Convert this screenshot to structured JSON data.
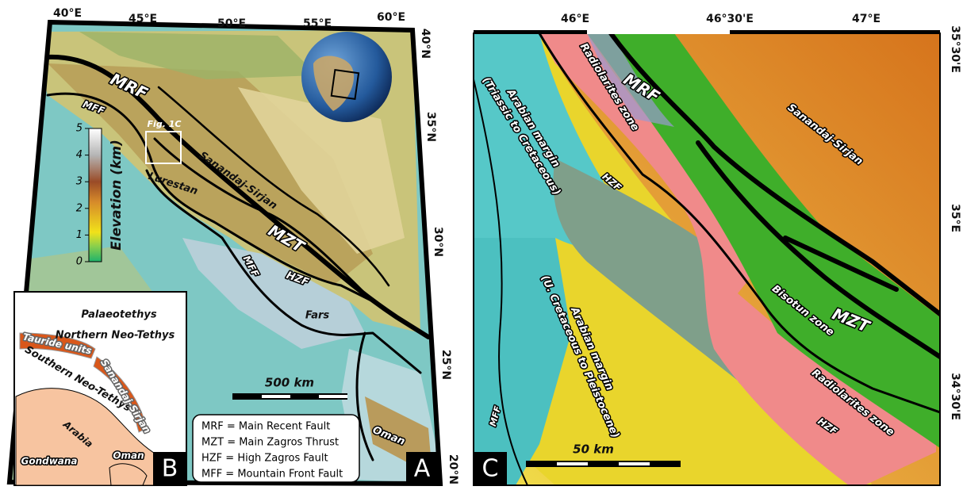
{
  "panel_a": {
    "label": "A",
    "lon_ticks": [
      "40°E",
      "45°E",
      "50°E",
      "55°E",
      "60°E"
    ],
    "lat_ticks": [
      "40°N",
      "35°N",
      "30°N",
      "25°N",
      "20°N"
    ],
    "map_labels": {
      "mrf": "MRF",
      "mff_north": "MFF",
      "inset": "Fig. 1C",
      "sanandaj": "Sanandaj-Sirjan",
      "lurestan": "Lurestan",
      "mzt": "MZT",
      "mff_south": "MFF",
      "hzf": "HZF",
      "fars": "Fars",
      "oman": "Oman"
    },
    "colorbar": {
      "title": "Elevation (km)",
      "ticks": [
        0,
        1,
        2,
        3,
        4,
        5
      ]
    },
    "scale_bar": "500 km",
    "legend": [
      "MRF = Main Recent Fault",
      "MZT = Main Zagros Thrust",
      "HZF = High Zagros Fault",
      "MFF = Mountain Front Fault"
    ]
  },
  "panel_b": {
    "label": "B",
    "labels": [
      "Palaeotethys",
      "Northern Neo-Tethys",
      "Tauride units",
      "Southern Neo-Tethys",
      "Sanandaj-Sirjan",
      "Arabia",
      "Gondwana",
      "Oman"
    ]
  },
  "panel_c": {
    "label": "C",
    "lon_ticks": [
      "46°E",
      "46°30'E",
      "47°E"
    ],
    "lat_ticks": [
      "35°30'E",
      "35°E",
      "34°30'E"
    ],
    "map_labels": {
      "mrf": "MRF",
      "radiolarites_north": "Radiolarites zone",
      "hzf_north": "HZF",
      "arabian_margin_north": [
        "Arabian margin",
        "(Triassic to Cretaceous)"
      ],
      "sanandaj": "Sanandaj-Sirjan",
      "bisotun": "Bisotun zone",
      "mzt": "MZT",
      "radiolarites_south": "Radiolarites zone",
      "hzf_south": "HZF",
      "arabian_margin_south": [
        "Arabian margin",
        "(U. Cretaceous to Pleistocene)"
      ],
      "mff": "MFF"
    },
    "scale_bar": "50 km"
  }
}
